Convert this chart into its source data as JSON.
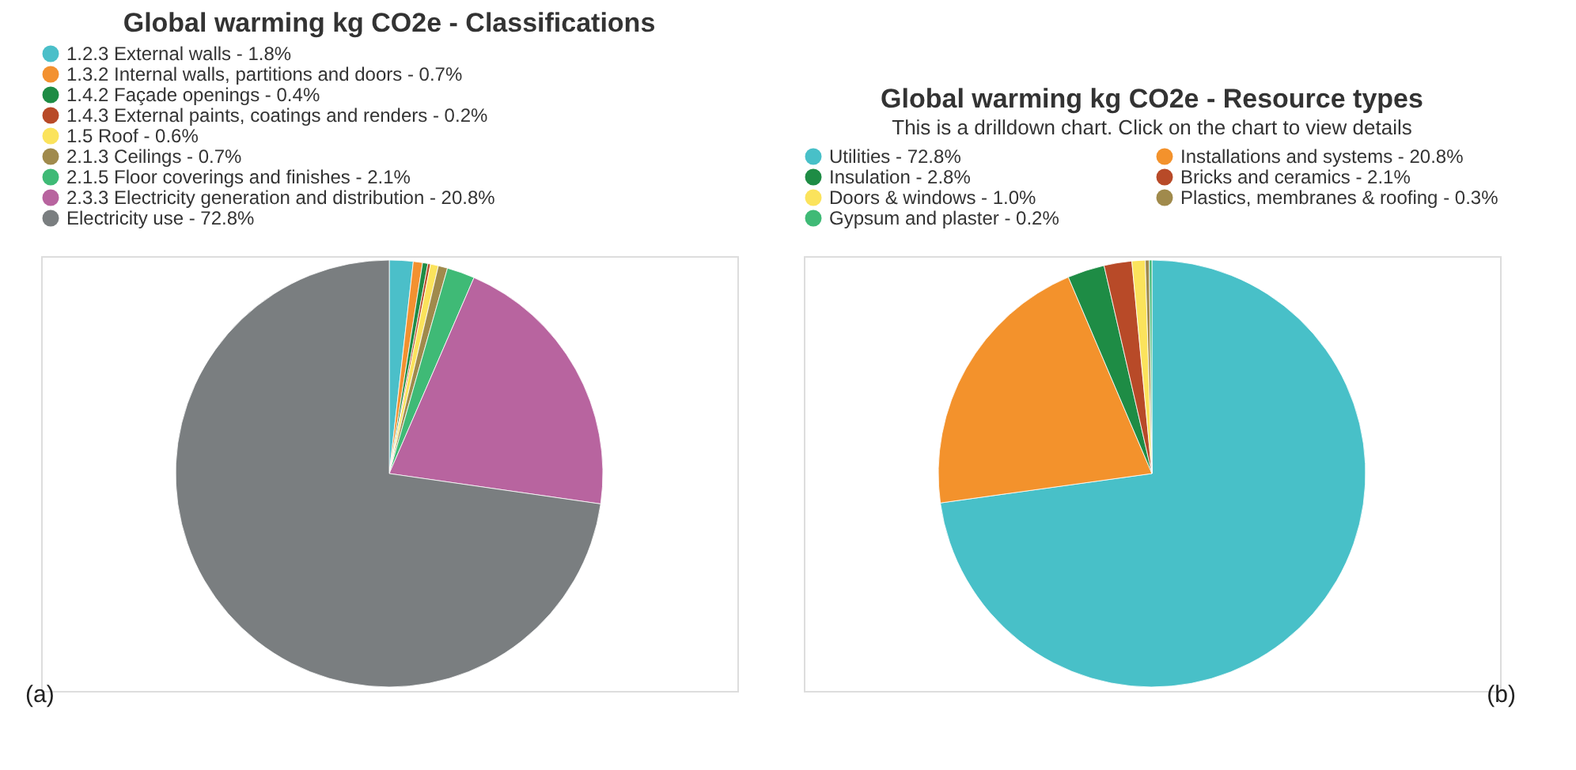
{
  "chart_data": [
    {
      "type": "pie",
      "title": "Global warming kg CO2e - Classifications",
      "categories": [
        "1.2.3 External walls - 1.8%",
        "1.3.2 Internal walls, partitions and doors - 0.7%",
        "1.4.2 Façade openings - 0.4%",
        "1.4.3 External paints, coatings and renders - 0.2%",
        "1.5 Roof - 0.6%",
        "2.1.3 Ceilings - 0.7%",
        "2.1.5 Floor coverings and finishes - 2.1%",
        "2.3.3 Electricity generation and distribution - 20.8%",
        "Electricity use - 72.8%"
      ],
      "values": [
        1.8,
        0.7,
        0.4,
        0.2,
        0.6,
        0.7,
        2.1,
        20.8,
        72.8
      ],
      "colors": [
        "#4bbfc9",
        "#f39130",
        "#1e8c45",
        "#b84a28",
        "#fbe35c",
        "#a08a4c",
        "#3fba76",
        "#b8649f",
        "#7a7e80"
      ],
      "legend": "top left",
      "annotations": [
        "(a)"
      ]
    },
    {
      "type": "pie",
      "title": "Global warming kg CO2e - Resource types",
      "subtitle": "This is a drilldown chart. Click on the chart to view details",
      "categories": [
        "Utilities - 72.8%",
        "Installations and systems - 20.8%",
        "Insulation - 2.8%",
        "Bricks and ceramics - 2.1%",
        "Doors & windows - 1.0%",
        "Plastics, membranes & roofing - 0.3%",
        "Gypsum and plaster - 0.2%"
      ],
      "values": [
        72.8,
        20.8,
        2.8,
        2.1,
        1.0,
        0.3,
        0.2
      ],
      "colors": [
        "#48c0c8",
        "#f3922c",
        "#1e8c45",
        "#b84a28",
        "#fbe35c",
        "#a08a4c",
        "#3fba76"
      ],
      "legend": "top",
      "annotations": [
        "(b)"
      ]
    }
  ]
}
